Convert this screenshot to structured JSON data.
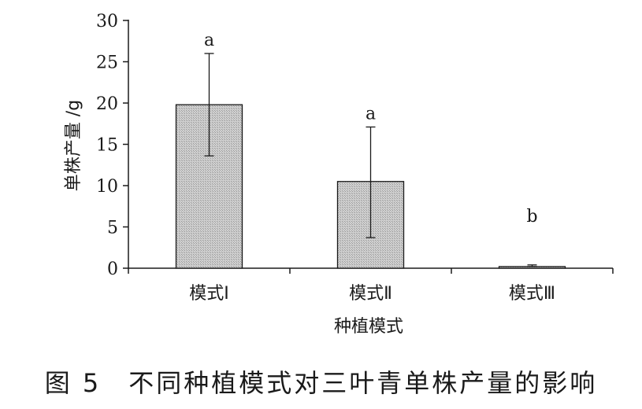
{
  "figure": {
    "caption": "图 5　不同种植模式对三叶青单株产量的影响"
  },
  "chart_data": {
    "type": "bar",
    "title": "",
    "xlabel": "种植模式",
    "ylabel": "单株产量 /g",
    "ylim": [
      0,
      30
    ],
    "yticks": [
      0,
      5,
      10,
      15,
      20,
      25,
      30
    ],
    "categories": [
      "模式Ⅰ",
      "模式Ⅱ",
      "模式Ⅲ"
    ],
    "values": [
      19.8,
      10.5,
      0.2
    ],
    "error_upper": [
      26.0,
      17.1,
      0.4
    ],
    "error_lower": [
      13.6,
      3.7,
      0.2
    ],
    "significance": [
      "a",
      "a",
      "b"
    ],
    "grid": false,
    "legend": "none",
    "colors": {
      "bar_fill": "#c8c8c8",
      "bar_stroke": "#1a1a1a",
      "axis": "#1a1a1a"
    }
  }
}
